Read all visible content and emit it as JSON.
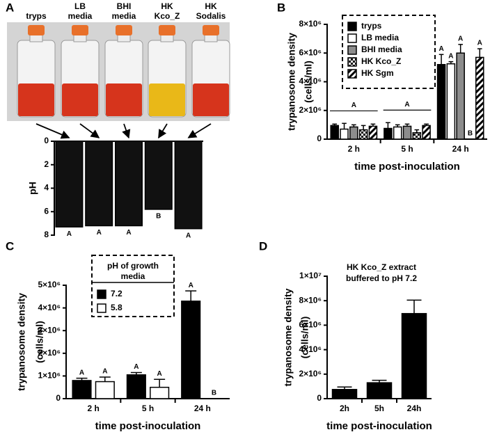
{
  "chart_data": [
    {
      "type": "bar",
      "panel": "A",
      "categories": [
        [
          "tryps"
        ],
        [
          "LB",
          "media"
        ],
        [
          "BHI",
          "media"
        ],
        [
          "HK",
          "Kco_Z"
        ],
        [
          "HK",
          "Sodalis"
        ]
      ],
      "ylabel": [
        "pH"
      ],
      "ylim": [
        0,
        8
      ],
      "yticks": [
        0,
        2,
        4,
        6,
        8
      ],
      "y_inverted": true,
      "series": [
        {
          "color": "#111111",
          "values": [
            7.3,
            7.2,
            7.2,
            5.8,
            7.45
          ],
          "letters": [
            "A",
            "A",
            "A",
            "B",
            "A"
          ]
        }
      ]
    },
    {
      "type": "bar",
      "panel": "B",
      "categories": [
        "2 h",
        "5 h",
        "24 h"
      ],
      "ylabel": [
        "trypanosome density",
        "(cells/ml)"
      ],
      "xlabel": "time post-inoculation",
      "ylim": [
        0,
        8000000
      ],
      "yticks": [
        0,
        {
          "value": 2000000,
          "label": "2×10⁶"
        },
        {
          "value": 4000000,
          "label": "4×10⁶"
        },
        {
          "value": 6000000,
          "label": "6×10⁶"
        },
        {
          "value": 8000000,
          "label": "8×10⁶"
        }
      ],
      "group_letters": [
        "A",
        "A",
        null
      ],
      "series": [
        {
          "name": "tryps",
          "color": "#000000",
          "values": [
            950000,
            750000,
            5200000
          ],
          "errors": [
            100000,
            400000,
            700000
          ],
          "letters": [
            null,
            null,
            "A"
          ]
        },
        {
          "name": "LB media",
          "color": "#ffffff",
          "values": [
            700000,
            850000,
            5250000
          ],
          "errors": [
            400000,
            150000,
            150000
          ],
          "letters": [
            null,
            null,
            "A"
          ]
        },
        {
          "name": "BHI media",
          "color": "#8c8c8c",
          "values": [
            850000,
            900000,
            6000000
          ],
          "errors": [
            150000,
            150000,
            600000
          ],
          "letters": [
            null,
            null,
            "A"
          ]
        },
        {
          "name": "HK Kco_Z",
          "color": "#000000",
          "pattern": "checker",
          "values": [
            650000,
            450000,
            0
          ],
          "errors": [
            300000,
            200000,
            0
          ],
          "letters": [
            null,
            null,
            "B"
          ]
        },
        {
          "name": "HK Sgm",
          "color": "#000000",
          "pattern": "hatch",
          "values": [
            900000,
            950000,
            5700000
          ],
          "errors": [
            150000,
            100000,
            600000
          ],
          "letters": [
            null,
            null,
            "A"
          ]
        }
      ]
    },
    {
      "type": "bar",
      "panel": "C",
      "categories": [
        "2 h",
        "5 h",
        "24 h"
      ],
      "ylabel": [
        "trypanosome density",
        "(cells/ml)"
      ],
      "xlabel": "time post-inoculation",
      "ylim": [
        0,
        5000000
      ],
      "yticks": [
        0,
        {
          "value": 1000000,
          "label": "1×10⁶"
        },
        {
          "value": 2000000,
          "label": "2×10⁶"
        },
        {
          "value": 3000000,
          "label": "3×10⁶"
        },
        {
          "value": 4000000,
          "label": "4×10⁶"
        },
        {
          "value": 5000000,
          "label": "5×10⁶"
        }
      ],
      "legend_title": [
        "pH of growth",
        "media"
      ],
      "series": [
        {
          "name": "7.2",
          "color": "#000000",
          "values": [
            800000,
            1050000,
            4300000
          ],
          "errors": [
            100000,
            100000,
            450000
          ],
          "letters": [
            "A",
            "A",
            "A"
          ]
        },
        {
          "name": "5.8",
          "color": "#ffffff",
          "values": [
            750000,
            500000,
            0
          ],
          "errors": [
            200000,
            350000,
            0
          ],
          "letters": [
            "A",
            "A",
            "B"
          ]
        }
      ]
    },
    {
      "type": "bar",
      "panel": "D",
      "categories": [
        "2h",
        "5h",
        "24h"
      ],
      "ylabel": [
        "trypanosome density",
        "(cells/ml)"
      ],
      "xlabel": "time post-inoculation",
      "annotation": [
        "HK Kco_Z extract",
        "buffered to pH 7.2"
      ],
      "ylim": [
        0,
        10000000
      ],
      "yticks": [
        0,
        {
          "value": 2000000,
          "label": "2×10⁶"
        },
        {
          "value": 4000000,
          "label": "4×10⁶"
        },
        {
          "value": 6000000,
          "label": "6×10⁶"
        },
        {
          "value": 8000000,
          "label": "8×10⁶"
        },
        {
          "value": 10000000,
          "label": "1×10⁷"
        }
      ],
      "series": [
        {
          "color": "#000000",
          "values": [
            750000,
            1300000,
            6950000
          ],
          "errors": [
            200000,
            200000,
            1100000
          ]
        }
      ]
    }
  ]
}
